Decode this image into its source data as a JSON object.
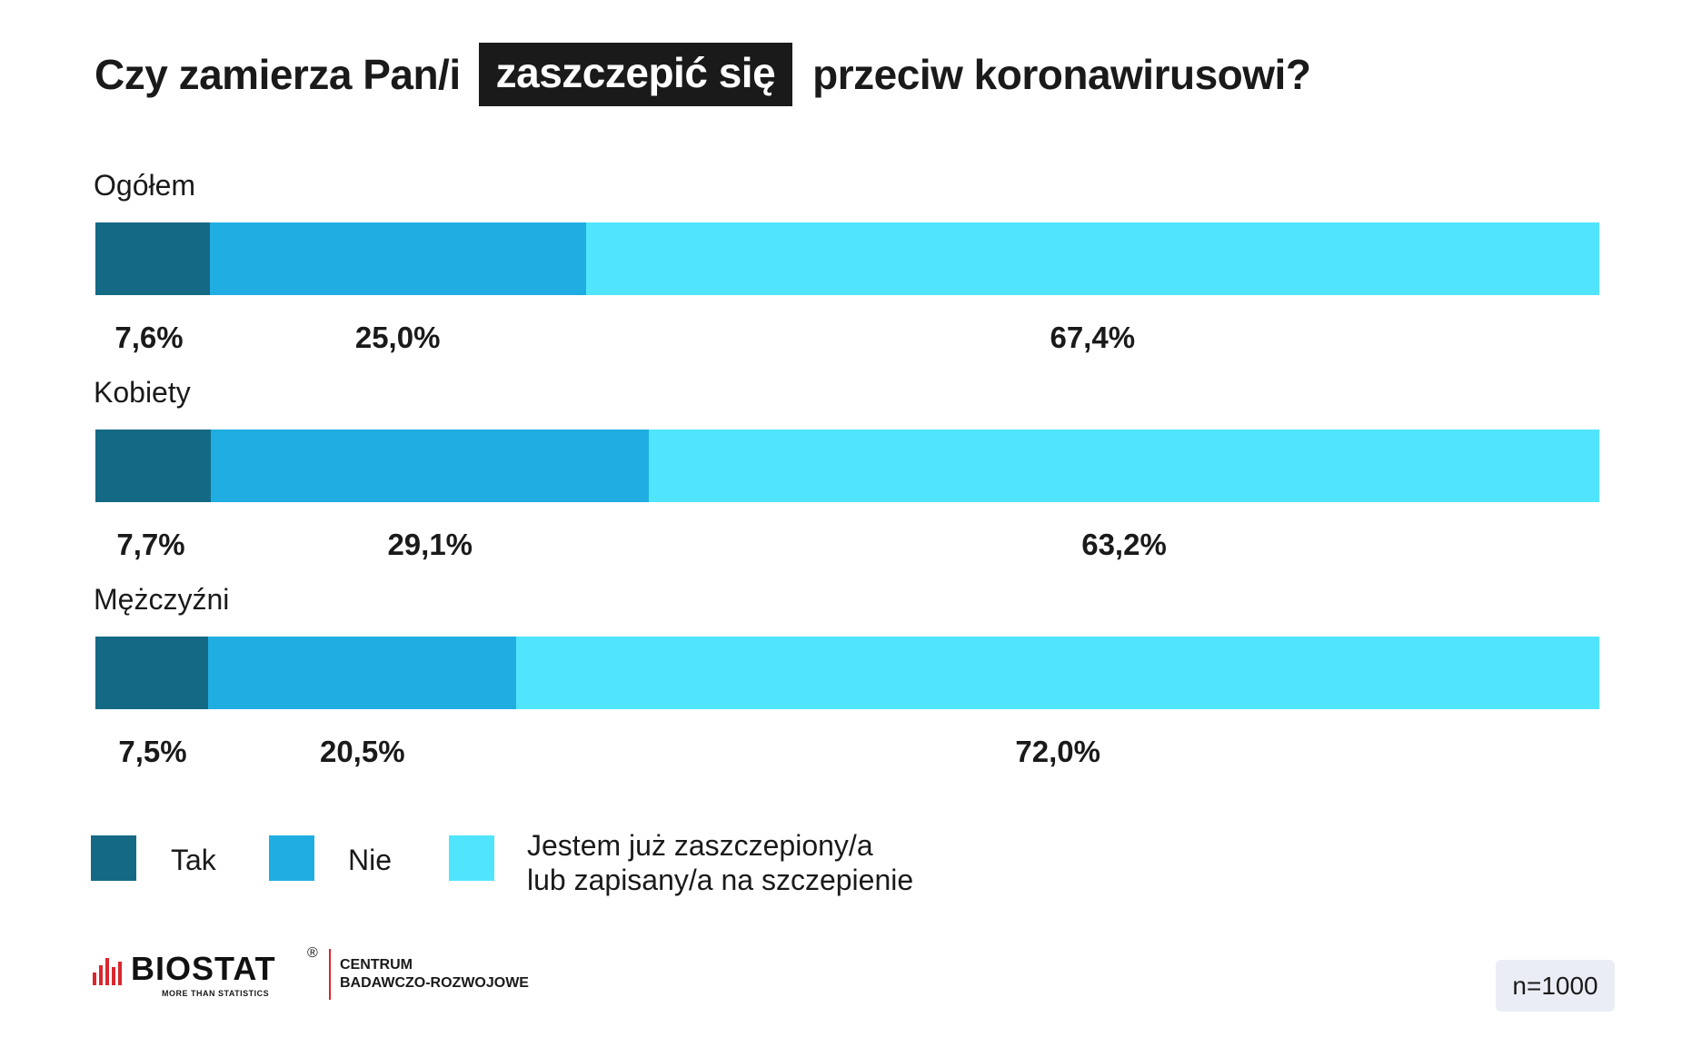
{
  "title": {
    "before": "Czy zamierza Pan/i",
    "highlight": "zaszczepić się",
    "after": "przeciw koronawirusowi?"
  },
  "colors": {
    "tak": "#146a85",
    "nie": "#20aee2",
    "zaszczepiony": "#50e5fd"
  },
  "chart_data": {
    "type": "bar",
    "orientation": "horizontal",
    "stacked": true,
    "xlim": [
      0,
      100
    ],
    "categories": [
      "Ogółem",
      "Kobiety",
      "Mężczyźni"
    ],
    "series": [
      {
        "name": "Tak",
        "values": [
          7.6,
          7.7,
          7.5
        ],
        "labels": [
          "7,6%",
          "7,7%",
          "7,5%"
        ]
      },
      {
        "name": "Nie",
        "values": [
          25.0,
          29.1,
          20.5
        ],
        "labels": [
          "25,0%",
          "29,1%",
          "20,5%"
        ]
      },
      {
        "name": "Jestem już zaszczepiony/a\nlub zapisany/a na szczepienie",
        "values": [
          67.4,
          63.2,
          72.0
        ],
        "labels": [
          "67,4%",
          "63,2%",
          "72,0%"
        ]
      }
    ],
    "legend_position": "bottom"
  },
  "logo": {
    "name": "BIOSTAT",
    "registered": "®",
    "tagline": "MORE THAN STATISTICS",
    "center": "CENTRUM\nBADAWCZO-ROZWOJOWE"
  },
  "sample": "n=1000"
}
